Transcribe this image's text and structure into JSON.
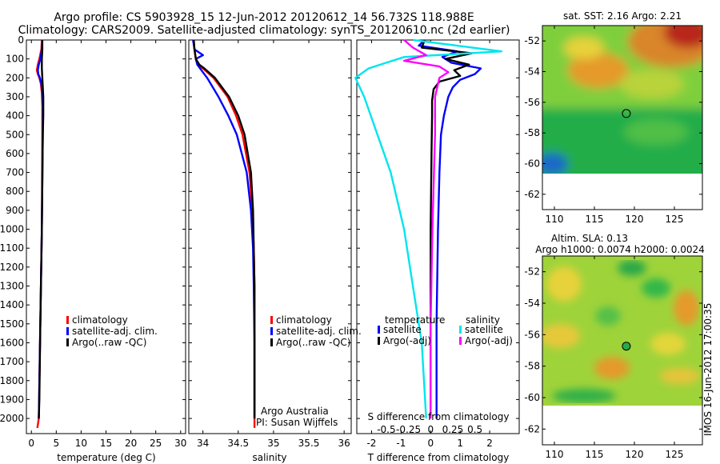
{
  "title_line1": "Argo profile: CS 5903928_15 12-Jun-2012 20120612_14 56.732S 118.988E",
  "title_line2": "Climatology: CARS2009. Satellite-adjusted climatology: synTS_20120610.nc (2d earlier)",
  "sst_title": "sat. SST: 2.16 Argo: 2.21",
  "sla_title1": "Altim. SLA: 0.13",
  "sla_title2": "Argo h1000: 0.0074 h2000: 0.0024",
  "side_stamp": "IMOS 16-Jun-2012 17:00:35",
  "credit1": "Argo Australia",
  "credit2": "PI: Susan Wijffels",
  "colors": {
    "clim": "#ff0000",
    "sat": "#0000ff",
    "argo": "#000000",
    "cyan": "#00e5ee",
    "magenta": "#ff00ff"
  },
  "legend_main": [
    "climatology",
    "satellite-adj. clim.",
    "Argo(..raw -QC)"
  ],
  "legend_diff": {
    "temperature_header": "temperature",
    "salinity_header": "salinity",
    "satellite": "satellite",
    "argo": "Argo(-adj)"
  },
  "chart_data": [
    {
      "type": "line",
      "name": "temperature",
      "xlabel": "temperature (deg C)",
      "ylabel": "",
      "xlim": [
        -1,
        31
      ],
      "ylim": [
        2080,
        0
      ],
      "xticks": [
        0,
        5,
        10,
        15,
        20,
        25,
        30
      ],
      "yticks": [
        0,
        100,
        200,
        300,
        400,
        500,
        600,
        700,
        800,
        900,
        1000,
        1100,
        1200,
        1300,
        1400,
        1500,
        1600,
        1700,
        1800,
        1900,
        2000
      ],
      "series": [
        {
          "name": "climatology",
          "color": "#ff0000",
          "depth": [
            0,
            50,
            100,
            130,
            160,
            180,
            200,
            230,
            280,
            350,
            500,
            1000,
            1500,
            2000,
            2050
          ],
          "values": [
            2.1,
            2.0,
            1.6,
            1.3,
            1.1,
            1.3,
            1.6,
            1.9,
            2.1,
            2.2,
            2.2,
            2.1,
            1.8,
            1.5,
            1.2
          ]
        },
        {
          "name": "satellite-adj. clim.",
          "color": "#0000ff",
          "depth": [
            0,
            50,
            100,
            130,
            160,
            180,
            200,
            230,
            280,
            350,
            500,
            1000,
            1500,
            2000
          ],
          "values": [
            2.2,
            2.1,
            1.8,
            1.5,
            1.3,
            1.4,
            1.7,
            2.0,
            2.2,
            2.3,
            2.3,
            2.1,
            1.8,
            1.5
          ]
        },
        {
          "name": "Argo(..raw -QC)",
          "color": "#000000",
          "depth": [
            0,
            50,
            100,
            150,
            200,
            250,
            300,
            400,
            500,
            1000,
            1500,
            1900,
            2000
          ],
          "values": [
            2.2,
            2.2,
            2.1,
            2.1,
            2.2,
            2.3,
            2.4,
            2.4,
            2.3,
            2.1,
            1.8,
            1.6,
            1.5
          ]
        }
      ]
    },
    {
      "type": "line",
      "name": "salinity",
      "xlabel": "salinity",
      "ylabel": "",
      "xlim": [
        33.8,
        36.1
      ],
      "xticks": [
        34,
        34.5,
        35,
        35.5,
        36
      ],
      "series": [
        {
          "name": "climatology",
          "color": "#ff0000",
          "depth": [
            0,
            50,
            100,
            130,
            150,
            200,
            300,
            400,
            500,
            700,
            900,
            1100,
            1300,
            1600,
            2000,
            2050
          ],
          "values": [
            33.87,
            33.88,
            33.9,
            33.93,
            34.0,
            34.15,
            34.35,
            34.47,
            34.56,
            34.66,
            34.7,
            34.72,
            34.73,
            34.73,
            34.73,
            34.73
          ]
        },
        {
          "name": "satellite-adj. clim.",
          "color": "#0000ff",
          "depth": [
            0,
            50,
            80,
            100,
            130,
            150,
            200,
            300,
            400,
            500,
            700,
            900,
            1100,
            1300,
            1600,
            2000
          ],
          "values": [
            33.86,
            33.88,
            34.0,
            33.9,
            33.92,
            33.96,
            34.06,
            34.22,
            34.36,
            34.48,
            34.62,
            34.68,
            34.71,
            34.72,
            34.73,
            34.73
          ]
        },
        {
          "name": "Argo(..raw -QC)",
          "color": "#000000",
          "depth": [
            0,
            50,
            100,
            130,
            150,
            200,
            300,
            400,
            500,
            700,
            900,
            1100,
            1300,
            1600,
            2000
          ],
          "values": [
            33.87,
            33.88,
            33.9,
            33.95,
            34.02,
            34.17,
            34.37,
            34.5,
            34.59,
            34.68,
            34.71,
            34.72,
            34.73,
            34.73,
            34.73
          ]
        }
      ]
    },
    {
      "type": "line",
      "name": "difference",
      "xlabel": "T difference from climatology",
      "x2label": "S difference from climatology",
      "xlim": [
        -2.5,
        3.0
      ],
      "xticks": [
        -2,
        -1,
        0,
        1,
        2
      ],
      "x2ticks": [
        -0.5,
        -0.25,
        0,
        0.25,
        0.5
      ],
      "x2tick_labels": [
        "-0.5",
        "-0.25",
        "0",
        "0.25",
        "0.5"
      ],
      "series": [
        {
          "name": "T satellite",
          "color": "#0000ff",
          "depth": [
            0,
            30,
            60,
            90,
            120,
            150,
            180,
            210,
            250,
            300,
            400,
            500,
            700,
            1000,
            1500,
            2000
          ],
          "values": [
            -0.2,
            -0.4,
            0.9,
            0.4,
            0.7,
            1.7,
            1.5,
            1.0,
            0.75,
            0.6,
            0.45,
            0.35,
            0.3,
            0.25,
            0.2,
            0.2
          ]
        },
        {
          "name": "T Argo(-adj)",
          "color": "#000000",
          "depth": [
            0,
            40,
            70,
            100,
            130,
            160,
            190,
            220,
            260,
            320,
            400,
            600,
            1000,
            1500,
            2000
          ],
          "values": [
            -0.2,
            -0.3,
            1.4,
            0.5,
            1.3,
            0.8,
            1.0,
            0.3,
            0.1,
            0.05,
            0.05,
            0.03,
            0.0,
            0.0,
            0.0
          ]
        },
        {
          "name": "S satellite",
          "color": "#00e5ee",
          "depth": [
            0,
            30,
            60,
            90,
            120,
            150,
            200,
            300,
            500,
            700,
            1000,
            1300,
            1600,
            2000
          ],
          "values": [
            -0.2,
            0.3,
            0.8,
            -0.3,
            -0.5,
            -0.7,
            -0.85,
            -0.75,
            -0.6,
            -0.45,
            -0.3,
            -0.2,
            -0.1,
            -0.05
          ]
        },
        {
          "name": "S Argo(-adj)",
          "color": "#ff00ff",
          "depth": [
            0,
            40,
            80,
            110,
            140,
            170,
            200,
            300,
            500,
            1000,
            1500,
            2000
          ],
          "values": [
            -0.3,
            -0.2,
            -0.05,
            -0.3,
            0.1,
            0.2,
            0.1,
            0.05,
            0.05,
            0.02,
            0.0,
            0.0
          ]
        }
      ]
    },
    {
      "type": "heatmap",
      "name": "satellite SST map",
      "xlim": [
        108.5,
        128.5
      ],
      "ylim": [
        -63,
        -51
      ],
      "xticks": [
        110,
        115,
        120,
        125
      ],
      "yticks": [
        -52,
        -54,
        -56,
        -58,
        -60,
        -62
      ],
      "argo_position": [
        118.988,
        -56.732
      ],
      "data_extent_lat": [
        -60,
        -51
      ]
    },
    {
      "type": "heatmap",
      "name": "altimeter SLA map",
      "xlim": [
        108.5,
        128.5
      ],
      "ylim": [
        -63,
        -51
      ],
      "xticks": [
        110,
        115,
        120,
        125
      ],
      "yticks": [
        -52,
        -54,
        -56,
        -58,
        -60,
        -62
      ],
      "argo_position": [
        118.988,
        -56.732
      ],
      "data_extent_lat": [
        -60,
        -51
      ]
    }
  ]
}
